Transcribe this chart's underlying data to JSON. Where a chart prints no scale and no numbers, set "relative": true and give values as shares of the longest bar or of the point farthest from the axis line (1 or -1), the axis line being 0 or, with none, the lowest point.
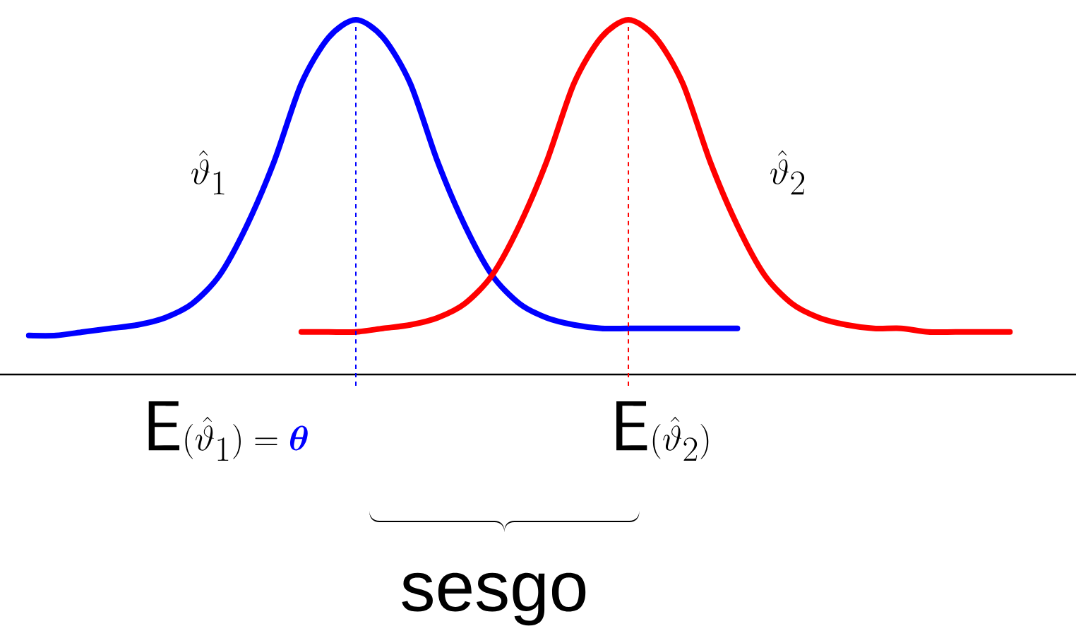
{
  "chart_data": {
    "type": "line",
    "relative": true,
    "categories": [
      null,
      null,
      null,
      null,
      null,
      null,
      null,
      null,
      null,
      null,
      null,
      null,
      null,
      null,
      null,
      null,
      null,
      null,
      null,
      null,
      null,
      null,
      null,
      null,
      null,
      null,
      null,
      null,
      null,
      null,
      null,
      null,
      null,
      null,
      null,
      null,
      null
    ],
    "series": [
      {
        "color": "#0000ff",
        "values": [
          0.11,
          0.11,
          0.12,
          0.13,
          0.14,
          0.16,
          0.2,
          0.28,
          0.42,
          0.6,
          0.82,
          0.95,
          1.0,
          0.95,
          0.82,
          0.6,
          0.42,
          0.28,
          0.2,
          0.16,
          0.14,
          0.13,
          0.13,
          0.13,
          0.13,
          0.13,
          0.13,
          null,
          null,
          null,
          null,
          null,
          null,
          null,
          null,
          null,
          null
        ]
      },
      {
        "color": "#ff0000",
        "values": [
          null,
          null,
          null,
          null,
          null,
          null,
          null,
          null,
          null,
          null,
          0.12,
          0.12,
          0.12,
          0.13,
          0.14,
          0.16,
          0.2,
          0.28,
          0.42,
          0.6,
          0.82,
          0.95,
          1.0,
          0.95,
          0.82,
          0.6,
          0.42,
          0.28,
          0.2,
          0.16,
          0.14,
          0.13,
          0.13,
          0.12,
          0.12,
          0.12,
          0.12
        ]
      }
    ],
    "annotations": [
      "\\hat{\\vartheta}_1",
      "\\hat{\\vartheta}_2",
      "\\mathsf{E}(\\hat{\\vartheta}_1)=\\textcolor{blue}{\\boldsymbol{\\theta}}",
      "\\mathsf{E}(\\hat{\\vartheta}_2)",
      "sesgo"
    ]
  }
}
